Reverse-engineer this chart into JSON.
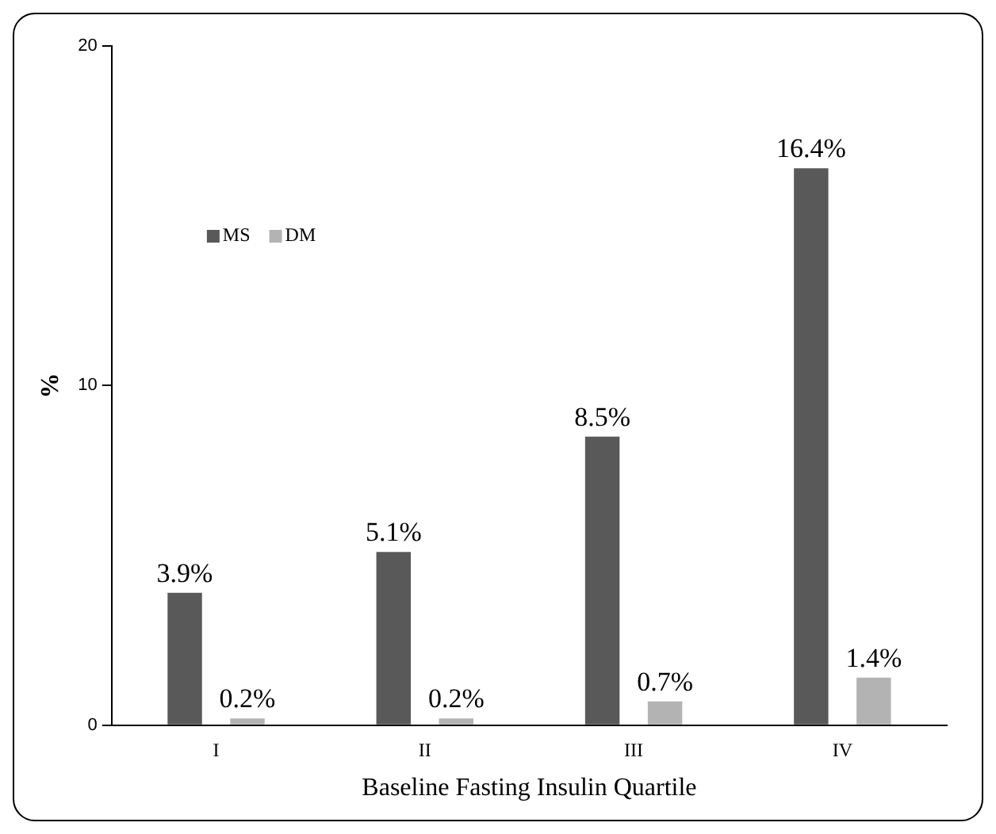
{
  "chart_data": {
    "type": "bar",
    "xlabel": "Baseline Fasting Insulin Quartile",
    "ylabel": "%",
    "categories": [
      "I",
      "II",
      "III",
      "IV"
    ],
    "series": [
      {
        "name": "MS",
        "color": "#595959",
        "values": [
          3.9,
          5.1,
          8.5,
          16.4
        ]
      },
      {
        "name": "DM",
        "color": "#b3b3b3",
        "values": [
          0.2,
          0.2,
          0.7,
          1.4
        ]
      }
    ],
    "ylim": [
      0,
      20
    ],
    "yticks": [
      0,
      10,
      20
    ],
    "grid": false,
    "legend": "top left",
    "value_labels": [
      [
        "3.9%",
        "5.1%",
        "8.5%",
        "16.4%"
      ],
      [
        "0.2%",
        "0.2%",
        "0.7%",
        "1.4%"
      ]
    ]
  }
}
